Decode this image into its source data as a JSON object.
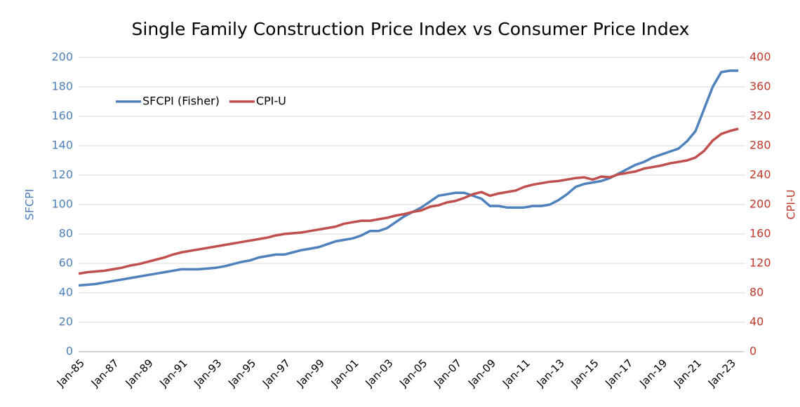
{
  "chart_data": {
    "type": "line",
    "title": "Single Family Construction Price Index vs Consumer Price Index",
    "ylabel": "SFCPI",
    "y2label": "CPI-U",
    "x": [
      "Jan-85",
      null,
      null,
      null,
      "Jan-87",
      null,
      null,
      null,
      "Jan-89",
      null,
      null,
      null,
      "Jan-91",
      null,
      null,
      null,
      "Jan-93",
      null,
      null,
      null,
      "Jan-95",
      null,
      null,
      null,
      "Jan-97",
      null,
      null,
      null,
      "Jan-99",
      null,
      null,
      null,
      "Jan-01",
      null,
      null,
      null,
      "Jan-03",
      null,
      null,
      null,
      "Jan-05",
      null,
      null,
      null,
      "Jan-07",
      null,
      null,
      null,
      "Jan-09",
      null,
      null,
      null,
      "Jan-11",
      null,
      null,
      null,
      "Jan-13",
      null,
      null,
      null,
      "Jan-15",
      null,
      null,
      null,
      "Jan-17",
      null,
      null,
      null,
      "Jan-19",
      null,
      null,
      null,
      "Jan-21",
      null,
      null,
      null,
      "Jan-23",
      null
    ],
    "series": [
      {
        "name": "SFCPI (Fisher)",
        "color": "#4f81bd",
        "axis": "y",
        "values": [
          45,
          45.5,
          46,
          47,
          48,
          49,
          50,
          51,
          52,
          53,
          54,
          55,
          56,
          56,
          56,
          56.5,
          57,
          58,
          59.5,
          61,
          62,
          64,
          65,
          66,
          66,
          67.5,
          69,
          70,
          71,
          73,
          75,
          76,
          77,
          79,
          82,
          82,
          84,
          88,
          92,
          95,
          98,
          102,
          106,
          107,
          108,
          108,
          106,
          104,
          99,
          99,
          98,
          98,
          98,
          99,
          99,
          100,
          103,
          107,
          112,
          114,
          115,
          116,
          118,
          121,
          124,
          127,
          129,
          132,
          134,
          136,
          138,
          143,
          150,
          165,
          180,
          190,
          191,
          191
        ]
      },
      {
        "name": "CPI-U",
        "color": "#c0504d",
        "axis": "y2",
        "values": [
          106,
          108,
          109,
          110,
          112,
          114,
          117,
          119,
          122,
          125,
          128,
          132,
          135,
          137,
          139,
          141,
          143,
          145,
          147,
          149,
          151,
          153,
          155,
          158,
          160,
          161,
          162,
          164,
          166,
          168,
          170,
          174,
          176,
          178,
          178,
          180,
          182,
          185,
          187,
          190,
          192,
          197,
          199,
          203,
          205,
          209,
          214,
          217,
          212,
          215,
          217,
          219,
          224,
          227,
          229,
          231,
          232,
          234,
          236,
          237,
          234,
          238,
          237,
          241,
          243,
          245,
          249,
          251,
          253,
          256,
          258,
          260,
          264,
          273,
          287,
          296,
          300,
          303
        ]
      }
    ],
    "ylim": [
      0,
      200
    ],
    "yticks": [
      0,
      20,
      40,
      60,
      80,
      100,
      120,
      140,
      160,
      180,
      200
    ],
    "y2lim": [
      0,
      400
    ],
    "y2ticks": [
      0,
      40,
      80,
      120,
      160,
      200,
      240,
      280,
      320,
      360,
      400
    ],
    "grid": true,
    "legend": "upper left"
  }
}
